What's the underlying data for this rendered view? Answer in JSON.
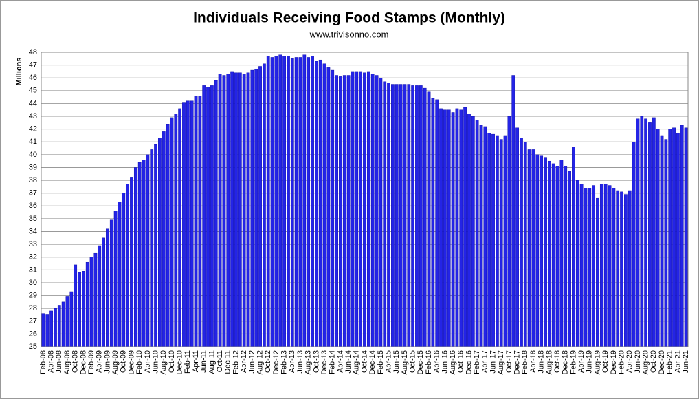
{
  "chart_data": {
    "type": "bar",
    "title": "Individuals Receiving Food Stamps (Monthly)",
    "subtitle": "www.trivisonno.com",
    "y_label": "Millions",
    "categories": [
      "Feb-08",
      null,
      "Apr-08",
      null,
      "Jun-08",
      null,
      "Aug-08",
      null,
      "Oct-08",
      null,
      "Dec-08",
      null,
      "Feb-09",
      null,
      "Apr-09",
      null,
      "Jun-09",
      null,
      "Aug-09",
      null,
      "Oct-09",
      null,
      "Dec-09",
      null,
      "Feb-10",
      null,
      "Apr-10",
      null,
      "Jun-10",
      null,
      "Aug-10",
      null,
      "Oct-10",
      null,
      "Dec-10",
      null,
      "Feb-11",
      null,
      "Apr-11",
      null,
      "Jun-11",
      null,
      "Aug-11",
      null,
      "Oct-11",
      null,
      "Dec-11",
      null,
      "Feb-12",
      null,
      "Apr-12",
      null,
      "Jun-12",
      null,
      "Aug-12",
      null,
      "Oct-12",
      null,
      "Dec-12",
      null,
      "Feb-13",
      null,
      "Apr-13",
      null,
      "Jun-13",
      null,
      "Aug-13",
      null,
      "Oct-13",
      null,
      "Dec-13",
      null,
      "Feb-14",
      null,
      "Apr-14",
      null,
      "Jun-14",
      null,
      "Aug-14",
      null,
      "Oct-14",
      null,
      "Dec-14",
      null,
      "Feb-15",
      null,
      "Apr-15",
      null,
      "Jun-15",
      null,
      "Aug-15",
      null,
      "Oct-15",
      null,
      "Dec-15",
      null,
      "Feb-16",
      null,
      "Apr-16",
      null,
      "Jun-16",
      null,
      "Aug-16",
      null,
      "Oct-16",
      null,
      "Dec-16",
      null,
      "Feb-17",
      null,
      "Apr-17",
      null,
      "Jun-17",
      null,
      "Aug-17",
      null,
      "Oct-17",
      null,
      "Dec-17",
      null,
      "Feb-18",
      null,
      "Apr-18",
      null,
      "Jun-18",
      null,
      "Aug-18",
      null,
      "Oct-18",
      null,
      "Dec-18",
      null,
      "Feb-19",
      null,
      "Apr-19",
      null,
      "Jun-19",
      null,
      "Aug-19",
      null,
      "Oct-19",
      null,
      "Dec-19",
      null,
      "Feb-20",
      null,
      "Apr-20",
      null,
      "Jun-20",
      null,
      "Aug-20",
      null,
      "Oct-20",
      null,
      "Dec-20",
      null,
      "Feb-21",
      null,
      "Apr-21",
      null,
      "Jun-21"
    ],
    "values": [
      27.6,
      27.5,
      27.8,
      28.0,
      28.2,
      28.5,
      28.9,
      29.3,
      31.4,
      30.8,
      30.9,
      31.6,
      32.0,
      32.3,
      32.9,
      33.5,
      34.2,
      34.9,
      35.6,
      36.3,
      37.0,
      37.7,
      38.2,
      39.0,
      39.4,
      39.6,
      40.0,
      40.4,
      40.8,
      41.3,
      41.8,
      42.4,
      42.9,
      43.2,
      43.6,
      44.1,
      44.2,
      44.2,
      44.6,
      44.6,
      45.4,
      45.3,
      45.4,
      45.8,
      46.3,
      46.2,
      46.3,
      46.5,
      46.4,
      46.4,
      46.3,
      46.4,
      46.6,
      46.7,
      46.9,
      47.1,
      47.7,
      47.6,
      47.7,
      47.8,
      47.7,
      47.7,
      47.5,
      47.6,
      47.6,
      47.8,
      47.6,
      47.7,
      47.3,
      47.4,
      47.1,
      46.8,
      46.6,
      46.2,
      46.1,
      46.2,
      46.2,
      46.5,
      46.5,
      46.5,
      46.4,
      46.5,
      46.3,
      46.2,
      46.0,
      45.7,
      45.6,
      45.5,
      45.5,
      45.5,
      45.5,
      45.5,
      45.4,
      45.4,
      45.4,
      45.2,
      44.9,
      44.4,
      44.3,
      43.6,
      43.5,
      43.5,
      43.3,
      43.6,
      43.5,
      43.7,
      43.2,
      43.0,
      42.7,
      42.3,
      42.2,
      41.7,
      41.6,
      41.5,
      41.2,
      41.5,
      43.0,
      46.2,
      42.1,
      41.3,
      41.0,
      40.4,
      40.4,
      40.0,
      39.9,
      39.8,
      39.5,
      39.3,
      39.1,
      39.6,
      39.1,
      38.7,
      40.6,
      38.0,
      37.7,
      37.4,
      37.4,
      37.6,
      36.6,
      37.7,
      37.7,
      37.6,
      37.4,
      37.2,
      37.1,
      36.9,
      37.2,
      41.0,
      42.8,
      43.0,
      42.8,
      42.5,
      42.9,
      42.0,
      41.5,
      41.2,
      42.0,
      42.1,
      41.7,
      42.3,
      42.1
    ],
    "color": "#2424e6",
    "ylim": [
      25,
      48
    ],
    "yticks": [
      25,
      26,
      27,
      28,
      29,
      30,
      31,
      32,
      33,
      34,
      35,
      36,
      37,
      38,
      39,
      40,
      41,
      42,
      43,
      44,
      45,
      46,
      47,
      48
    ],
    "grid": true
  }
}
